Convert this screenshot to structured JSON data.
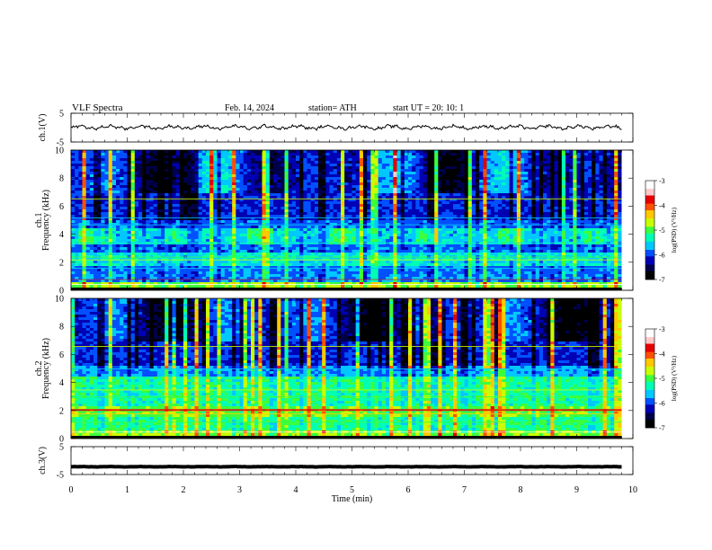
{
  "header": {
    "title": "VLF  Spectra",
    "date": "Feb. 14, 2024",
    "station": "station= ATH",
    "start": "start  UT  =   20: 10: 1"
  },
  "chart_data": [
    {
      "type": "line",
      "name": "ch1-waveform",
      "ylabel": "ch.1(V)",
      "ylim": [
        -5,
        5
      ],
      "yticks": [
        "5",
        "-5"
      ],
      "xlim": [
        0,
        10
      ],
      "trace_level": 0.1,
      "trace_end_time": 9.8,
      "color": "#000000"
    },
    {
      "type": "heatmap",
      "name": "ch1-spectrogram",
      "ylabel": "ch.1\nFrequency  (kHz)",
      "ylim": [
        0,
        10
      ],
      "yticks": [
        "0",
        "2",
        "4",
        "6",
        "8",
        "10"
      ],
      "xlim": [
        0,
        10
      ],
      "colorbar": {
        "label": "log(PSD) (V²/Hz)",
        "range": [
          -7,
          -3
        ],
        "ticks": [
          "-3",
          "-4",
          "-5",
          "-6",
          "-7"
        ]
      }
    },
    {
      "type": "heatmap",
      "name": "ch2-spectrogram",
      "ylabel": "ch.2\nFrequency  (kHz)",
      "ylim": [
        0,
        10
      ],
      "yticks": [
        "0",
        "2",
        "4",
        "6",
        "8",
        "10"
      ],
      "xlim": [
        0,
        10
      ],
      "colorbar": {
        "label": "log(PSD) (V²/Hz)",
        "range": [
          -7,
          -3
        ],
        "ticks": [
          "-3",
          "-4",
          "-5",
          "-6",
          "-7"
        ]
      }
    },
    {
      "type": "line",
      "name": "ch3-waveform",
      "ylabel": "ch.3(V)",
      "ylim": [
        -5,
        5
      ],
      "yticks": [
        "5",
        "-5"
      ],
      "xlim": [
        0,
        10
      ],
      "trace_level": -2.2,
      "trace_end_time": 9.8,
      "color": "#000000"
    }
  ],
  "xaxis": {
    "label": "Time  (min)",
    "ticks": [
      "0",
      "1",
      "2",
      "3",
      "4",
      "5",
      "6",
      "7",
      "8",
      "9",
      "10"
    ]
  },
  "colormap": [
    "#000000",
    "#00004a",
    "#0000b4",
    "#0050ff",
    "#00c8ff",
    "#00ffb4",
    "#3cff3c",
    "#c8ff00",
    "#ffc800",
    "#ff5000",
    "#e60000",
    "#ffc8c8",
    "#ffffff"
  ]
}
